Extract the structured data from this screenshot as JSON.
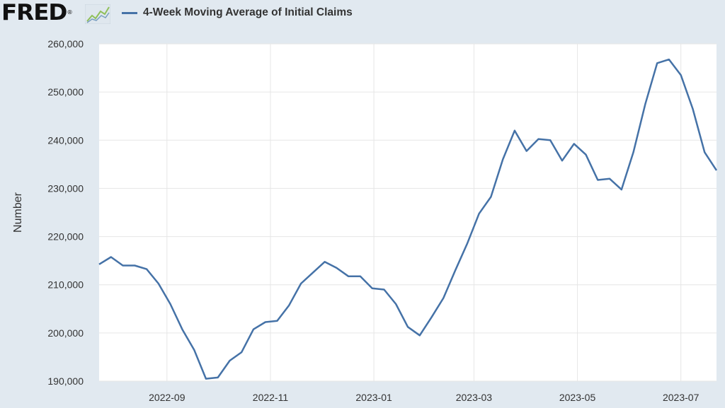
{
  "header": {
    "logo_text": "FRED",
    "logo_mark": "®",
    "logo_icon": "line-graph-icon"
  },
  "colors": {
    "background": "#e1e9f0",
    "plot_bg": "#ffffff",
    "series": "#4572a7",
    "grid": "#e6e6e6"
  },
  "chart_data": {
    "type": "line",
    "title": "",
    "xlabel": "",
    "ylabel": "Number",
    "ylim": [
      190000,
      260000
    ],
    "y_ticks": [
      190000,
      200000,
      210000,
      220000,
      230000,
      240000,
      250000,
      260000
    ],
    "y_tick_labels": [
      "190,000",
      "200,000",
      "210,000",
      "220,000",
      "230,000",
      "240,000",
      "250,000",
      "260,000"
    ],
    "xlim": [
      "2022-07-23",
      "2023-07-22"
    ],
    "x_ticks": [
      "2022-09-01",
      "2022-11-01",
      "2023-01-01",
      "2023-03-01",
      "2023-05-01",
      "2023-07-01"
    ],
    "x_tick_labels": [
      "2022-09",
      "2022-11",
      "2023-01",
      "2023-03",
      "2023-05",
      "2023-07"
    ],
    "legend_position": "top-left",
    "grid": true,
    "series": [
      {
        "name": "4-Week Moving Average of Initial Claims",
        "x": [
          "2022-07-23",
          "2022-07-30",
          "2022-08-06",
          "2022-08-13",
          "2022-08-20",
          "2022-08-27",
          "2022-09-03",
          "2022-09-10",
          "2022-09-17",
          "2022-09-24",
          "2022-10-01",
          "2022-10-08",
          "2022-10-15",
          "2022-10-22",
          "2022-10-29",
          "2022-11-05",
          "2022-11-12",
          "2022-11-19",
          "2022-11-26",
          "2022-12-03",
          "2022-12-10",
          "2022-12-17",
          "2022-12-24",
          "2022-12-31",
          "2023-01-07",
          "2023-01-14",
          "2023-01-21",
          "2023-01-28",
          "2023-02-04",
          "2023-02-11",
          "2023-02-18",
          "2023-02-25",
          "2023-03-04",
          "2023-03-11",
          "2023-03-18",
          "2023-03-25",
          "2023-04-01",
          "2023-04-08",
          "2023-04-15",
          "2023-04-22",
          "2023-04-29",
          "2023-05-06",
          "2023-05-13",
          "2023-05-20",
          "2023-05-27",
          "2023-06-03",
          "2023-06-10",
          "2023-06-17",
          "2023-06-24",
          "2023-07-01",
          "2023-07-08",
          "2023-07-15",
          "2023-07-22"
        ],
        "values": [
          214250,
          215750,
          214000,
          214000,
          213250,
          210250,
          206000,
          200750,
          196500,
          190500,
          190750,
          194250,
          196000,
          200750,
          202250,
          202500,
          205750,
          210250,
          212500,
          214750,
          213500,
          211750,
          211750,
          209250,
          209000,
          206000,
          201250,
          199500,
          203250,
          207250,
          213000,
          218500,
          224750,
          228250,
          236000,
          242000,
          237750,
          240250,
          240000,
          235750,
          239250,
          237000,
          231750,
          232000,
          229750,
          237500,
          247500,
          256000,
          256750,
          253500,
          246500,
          237500,
          233750
        ]
      }
    ]
  }
}
